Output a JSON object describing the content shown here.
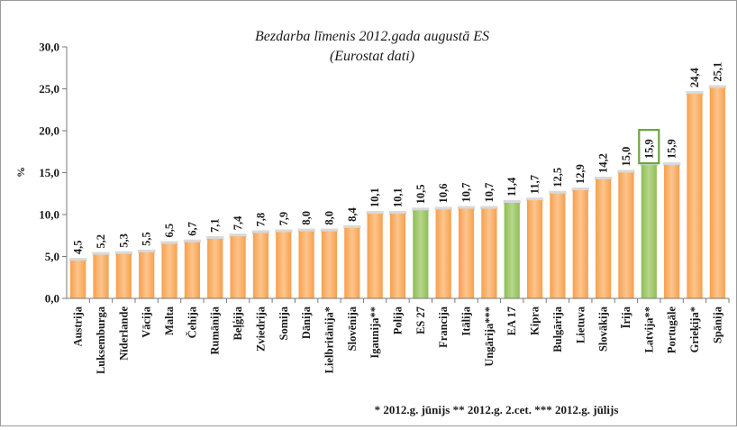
{
  "chart_data": {
    "type": "bar",
    "title": "Bezdarba līmenis 2012.gada augustā ES",
    "subtitle": "(Eurostat dati)",
    "ylabel": "%",
    "xlabel": "",
    "ylim": [
      0,
      30
    ],
    "yticks": [
      "0,0",
      "5,0",
      "10,0",
      "15,0",
      "20,0",
      "25,0",
      "30,0"
    ],
    "grid": false,
    "legend": "none",
    "categories": [
      "Austrija",
      "Luksemburga",
      "Nīderlande",
      "Vācija",
      "Malta",
      "Čehija",
      "Rumānija",
      "Beļģija",
      "Zviedrija",
      "Somija",
      "Dānija",
      "Lielbritānija*",
      "Slovēnija",
      "Igaunija**",
      "Polija",
      "ES 27",
      "Francija",
      "Itālija",
      "Ungārija***",
      "EA 17",
      "Kipra",
      "Bulgārija",
      "Lietuva",
      "Slovākija",
      "Īrija",
      "Latvija**",
      "Portugāle",
      "Grieķija*",
      "Spānija"
    ],
    "values": [
      4.5,
      5.2,
      5.3,
      5.5,
      6.5,
      6.7,
      7.1,
      7.4,
      7.8,
      7.9,
      8.0,
      8.0,
      8.4,
      10.1,
      10.1,
      10.5,
      10.6,
      10.7,
      10.7,
      11.4,
      11.7,
      12.5,
      12.9,
      14.2,
      15.0,
      15.9,
      15.9,
      24.4,
      25.1
    ],
    "data_labels": [
      "4,5",
      "5,2",
      "5,3",
      "5,5",
      "6,5",
      "6,7",
      "7,1",
      "7,4",
      "7,8",
      "7,9",
      "8,0",
      "8,0",
      "8,4",
      "10,1",
      "10,1",
      "10,5",
      "10,6",
      "10,7",
      "10,7",
      "11,4",
      "11,7",
      "12,5",
      "12,9",
      "14,2",
      "15,0",
      "15,9",
      "15,9",
      "24,4",
      "25,1"
    ],
    "highlighted_categories": [
      "ES 27",
      "EA 17",
      "Latvija**"
    ],
    "footnote": "* 2012.g. jūnijs ** 2012.g. 2.cet. *** 2012.g. jūlijs",
    "colors": {
      "bar": "#f7a04d",
      "bar_light": "#fcc58d",
      "bar_highlight": "#8fbd57",
      "bar_highlight_light": "#b6d68c",
      "label_box": "#6aa641",
      "axis": "#7a7a7a"
    }
  }
}
